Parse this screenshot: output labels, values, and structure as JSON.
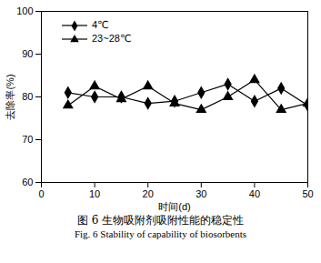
{
  "chart_data": {
    "type": "line",
    "title": "图 6 生物吸附剂吸附性能的稳定性",
    "subtitle": "Fig. 6 Stability of capability of biosorbents",
    "x_label": "时间(d)",
    "y_label": "去除率(%)",
    "x": [
      5,
      10,
      15,
      20,
      25,
      30,
      35,
      40,
      45,
      50
    ],
    "series": [
      {
        "name": "4℃",
        "color": "#000000",
        "marker": "diamond",
        "line_style": "solid",
        "values": [
          81,
          80,
          80,
          78.5,
          79,
          81,
          83,
          79,
          82,
          78
        ]
      },
      {
        "name": "23~28℃",
        "color": "#000000",
        "marker": "triangle",
        "line_style": "solid",
        "values": [
          78,
          82.5,
          79.5,
          82.5,
          78.5,
          77,
          80,
          84,
          77,
          78.5
        ]
      }
    ],
    "xlim": [
      0,
      50
    ],
    "xticks": [
      0,
      10,
      20,
      30,
      40,
      50
    ],
    "ylim": [
      60,
      100
    ],
    "yticks": [
      60,
      70,
      80,
      90,
      100
    ],
    "grid": false,
    "legend": "top-left"
  }
}
